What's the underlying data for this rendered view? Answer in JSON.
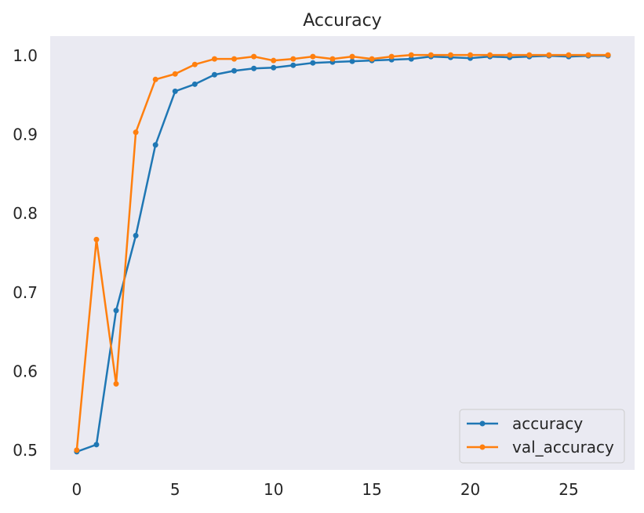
{
  "chart_data": {
    "type": "line",
    "title": "Accuracy",
    "xlabel": "",
    "ylabel": "",
    "xlim": [
      -1.35,
      28.35
    ],
    "ylim": [
      0.475,
      1.025
    ],
    "x_ticks": [
      0,
      5,
      10,
      15,
      20,
      25
    ],
    "y_ticks": [
      0.5,
      0.6,
      0.7,
      0.8,
      0.9,
      1.0
    ],
    "grid": false,
    "legend_position": "lower-right",
    "series": [
      {
        "name": "accuracy",
        "color": "#1f77b4",
        "marker": "circle",
        "x": [
          0,
          1,
          2,
          3,
          4,
          5,
          6,
          7,
          8,
          9,
          10,
          11,
          12,
          13,
          14,
          15,
          16,
          17,
          18,
          19,
          20,
          21,
          22,
          23,
          24,
          25,
          26,
          27
        ],
        "values": [
          0.498,
          0.507,
          0.677,
          0.772,
          0.887,
          0.955,
          0.964,
          0.976,
          0.981,
          0.984,
          0.985,
          0.988,
          0.991,
          0.992,
          0.993,
          0.994,
          0.995,
          0.996,
          0.999,
          0.998,
          0.997,
          0.999,
          0.998,
          0.999,
          1.0,
          0.999,
          1.0,
          1.0
        ]
      },
      {
        "name": "val_accuracy",
        "color": "#ff7f0e",
        "marker": "circle",
        "x": [
          0,
          1,
          2,
          3,
          4,
          5,
          6,
          7,
          8,
          9,
          10,
          11,
          12,
          13,
          14,
          15,
          16,
          17,
          18,
          19,
          20,
          21,
          22,
          23,
          24,
          25,
          26,
          27
        ],
        "values": [
          0.5,
          0.767,
          0.584,
          0.903,
          0.97,
          0.977,
          0.989,
          0.996,
          0.996,
          0.999,
          0.994,
          0.996,
          0.999,
          0.996,
          0.999,
          0.996,
          0.999,
          1.001,
          1.001,
          1.001,
          1.001,
          1.001,
          1.001,
          1.001,
          1.001,
          1.001,
          1.001,
          1.001
        ]
      }
    ]
  }
}
